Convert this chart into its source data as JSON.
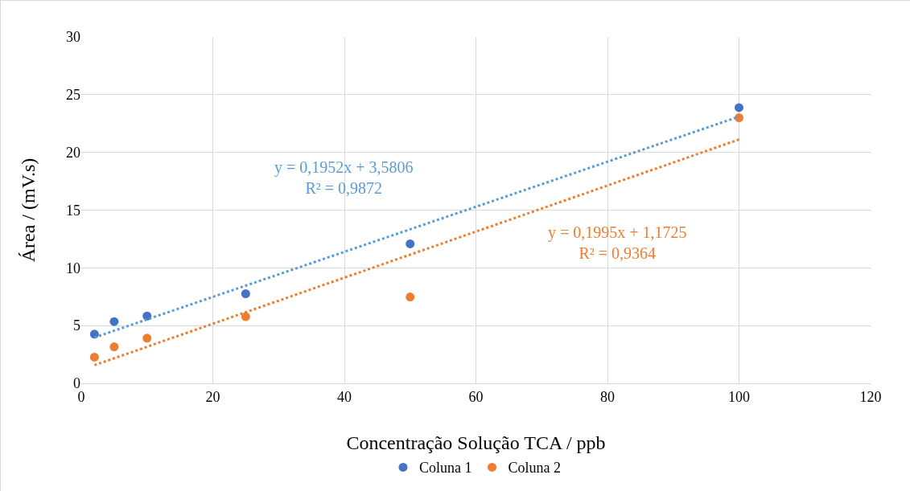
{
  "chart_data": {
    "type": "scatter",
    "xlabel": "Concentração Solução TCA / ppb",
    "ylabel": "Área / (mV.s)",
    "xlim": [
      0,
      120
    ],
    "xticks": [
      0,
      20,
      40,
      60,
      80,
      100,
      120
    ],
    "ylim": [
      0,
      30
    ],
    "yticks": [
      0,
      5,
      10,
      15,
      20,
      25,
      30
    ],
    "grid": true,
    "legend": "bottom",
    "marker": "circle",
    "series": [
      {
        "name": "Coluna 1",
        "color": "#4472c4",
        "x": [
          2,
          5,
          10,
          25,
          50,
          100
        ],
        "values": [
          4.26,
          5.35,
          5.83,
          7.76,
          12.08,
          23.88
        ]
      },
      {
        "name": "Coluna 2",
        "color": "#ed7d31",
        "x": [
          2,
          5,
          10,
          25,
          50,
          100
        ],
        "values": [
          2.27,
          3.16,
          3.91,
          5.77,
          7.48,
          23.0
        ]
      },
      {
        "type": "line",
        "color": "#5b9bd5",
        "line_style": "dotted",
        "marker": "none",
        "x": [
          2,
          100
        ],
        "values": [
          3.97,
          23.1
        ]
      },
      {
        "type": "line",
        "color": "#ed7d31",
        "line_style": "dotted",
        "marker": "none",
        "x": [
          2,
          100
        ],
        "values": [
          1.57,
          21.12
        ]
      }
    ],
    "annotations": [
      "y = 0,1952x + 3,5806\nR² = 0,9872",
      "y = 0,1995x + 1,1725\nR² = 0,9364"
    ]
  }
}
